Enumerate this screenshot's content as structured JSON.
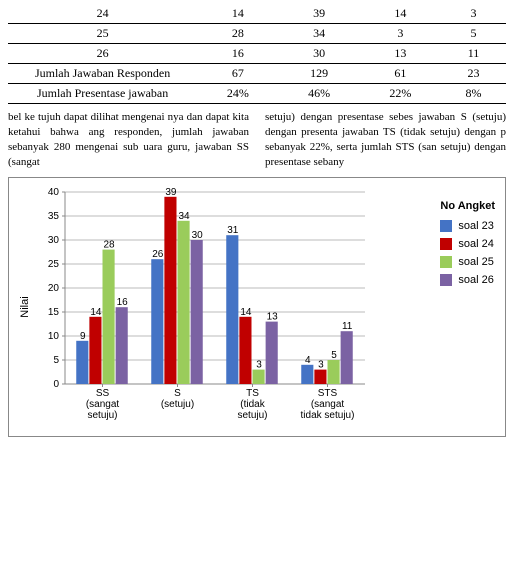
{
  "table": {
    "rows": [
      {
        "no": "24",
        "ss": "14",
        "s": "39",
        "ts": "14",
        "sts": "3"
      },
      {
        "no": "25",
        "ss": "28",
        "s": "34",
        "ts": "3",
        "sts": "5"
      },
      {
        "no": "26",
        "ss": "16",
        "s": "30",
        "ts": "13",
        "sts": "11"
      }
    ],
    "sum_row": {
      "label": "Jumlah Jawaban Responden",
      "ss": "67",
      "s": "129",
      "ts": "61",
      "sts": "23"
    },
    "pct_row": {
      "label": "Jumlah Presentase jawaban",
      "ss": "24%",
      "s": "46%",
      "ts": "22%",
      "sts": "8%"
    }
  },
  "paragraph": {
    "left": "bel ke tujuh dapat dilihat mengenai nya dan dapat kita ketahui bahwa ang responden, jumlah jawaban sebanyak 280 mengenai sub uara guru, jawaban SS (sangat",
    "right": "setuju) dengan presentase sebes jawaban S (setuju) dengan presenta jawaban TS (tidak setuju) dengan p sebanyak 22%, serta jumlah STS (san setuju) dengan presentase sebany"
  },
  "chart": {
    "type": "bar",
    "title": "No Angket",
    "y_label": "Nilai",
    "ylim": [
      0,
      40
    ],
    "ytick_step": 5,
    "categories": [
      "SS (sangat setuju)",
      "S (setuju)",
      "TS (tidak setuju)",
      "STS (sangat tidak setuju)"
    ],
    "series": [
      {
        "name": "soal 23",
        "color": "#4473c5",
        "values": [
          9,
          26,
          31,
          4
        ]
      },
      {
        "name": "soal 24",
        "color": "#c00000",
        "values": [
          14,
          39,
          14,
          3
        ]
      },
      {
        "name": "soal 25",
        "color": "#9acc5b",
        "values": [
          28,
          34,
          3,
          5
        ]
      },
      {
        "name": "soal 26",
        "color": "#7b62a3",
        "values": [
          16,
          30,
          13,
          11
        ]
      }
    ],
    "background_color": "#ffffff",
    "grid_color": "#bbbbbb",
    "bar_group_width": 0.7,
    "label_fontsize": 10
  }
}
